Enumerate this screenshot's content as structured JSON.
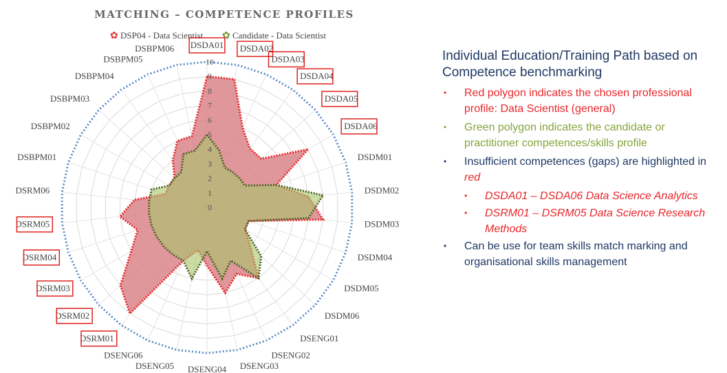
{
  "chart_data": {
    "type": "radar",
    "title": "MATCHING – COMPETENCE PROFILES",
    "legend_position": "top",
    "rmax": 10,
    "ticks": [
      "0",
      "1",
      "2",
      "3",
      "4",
      "5",
      "6",
      "7",
      "8",
      "9",
      "10"
    ],
    "categories": [
      "DSDA01",
      "DSDA02",
      "DSDA03",
      "DSDA04",
      "DSDA05",
      "DSDA06",
      "DSDM01",
      "DSDM02",
      "DSDM03",
      "DSDM04",
      "DSDM05",
      "DSDM06",
      "DSENG01",
      "DSENG02",
      "DSENG03",
      "DSENG04",
      "DSENG05",
      "DSENG06",
      "DSRM01",
      "DSRM02",
      "DSRM03",
      "DSRM04",
      "DSRM05",
      "DSRM06",
      "DSBPM01",
      "DSBPM02",
      "DSBPM03",
      "DSBPM04",
      "DSBPM05",
      "DSBPM06"
    ],
    "highlighted": [
      "DSDA01",
      "DSDA02",
      "DSDA03",
      "DSDA04",
      "DSDA05",
      "DSDA06",
      "DSRM01",
      "DSRM02",
      "DSRM03",
      "DSRM04",
      "DSRM05"
    ],
    "series": [
      {
        "name": "DSP04 - Data Scientist",
        "color": "#d9858a",
        "edge": "#e8262a",
        "opacity": 0.85,
        "values": [
          9,
          9,
          6,
          5,
          5,
          8,
          5,
          7,
          8,
          3,
          3,
          4,
          6,
          5,
          6,
          4,
          3,
          4,
          9,
          8,
          6,
          5,
          6,
          5,
          3,
          3,
          3,
          4,
          5,
          5
        ]
      },
      {
        "name": "Candidate - Data Scientist",
        "color": "#a9c46a",
        "edge": "#4f6228",
        "opacity": 0.6,
        "values": [
          5,
          4,
          3,
          3,
          3,
          3,
          5,
          8,
          7,
          3,
          3,
          5,
          6,
          4,
          5,
          3,
          5,
          4,
          4,
          4,
          4,
          4,
          4,
          4,
          4,
          3,
          3,
          3,
          4,
          4
        ]
      }
    ]
  },
  "side_panel": {
    "title": "Individual Education/Training Path based on Competence benchmarking",
    "bullets": [
      {
        "text": "Red polygon indicates the chosen professional profile: Data Scientist (general)",
        "color": "red"
      },
      {
        "text": "Green polygon indicates the candidate or practitioner competences/skills profile",
        "color": "green"
      },
      {
        "text_prefix": "Insufficient competences (gaps) are highlighted in ",
        "text_em": "red",
        "color": "navy"
      },
      {
        "text": "DSDA01 – DSDA06 Data Science Analytics",
        "color": "red",
        "sub": true
      },
      {
        "text": "DSRM01 – DSRM05 Data Science Research Methods",
        "color": "red",
        "sub": true
      },
      {
        "text": "Can be use for team skills match marking and organisational skills management",
        "color": "navy"
      }
    ]
  }
}
